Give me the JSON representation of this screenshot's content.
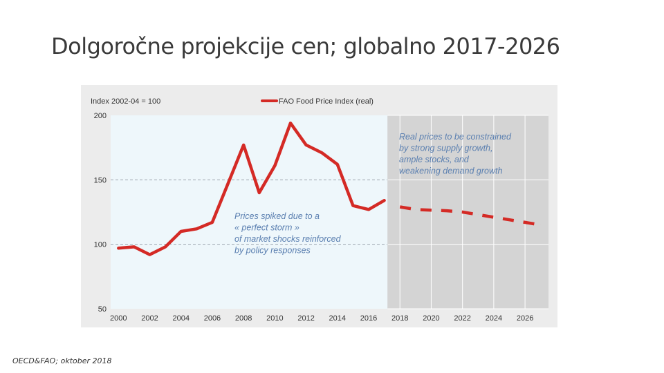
{
  "slide": {
    "title": "Dolgoročne projekcije cen; globalno 2017-2026",
    "source": "OECD&FAO; oktober 2018"
  },
  "colors": {
    "series": "#d42a25",
    "plot_bg": "#eef7fb",
    "projection_bg": "#d4d4d4",
    "frame_bg": "#ececec",
    "annotation_text": "#5a7fb0",
    "tick_text": "#333333"
  },
  "chart_data": {
    "type": "line",
    "ylabel": "Index 2002-04 = 100",
    "legend": {
      "label": "FAO Food Price Index (real)",
      "placement": "top-center"
    },
    "x_ticks": [
      "2000",
      "2002",
      "2004",
      "2006",
      "2008",
      "2010",
      "2012",
      "2014",
      "2016",
      "2018",
      "2020",
      "2022",
      "2024",
      "2026"
    ],
    "y_ticks": [
      "50",
      "100",
      "150",
      "200"
    ],
    "xlim": [
      1999.5,
      2027.5
    ],
    "ylim": [
      50,
      200
    ],
    "dashed_reference_lines": [
      100,
      150
    ],
    "projection_shading_from": 2017.2,
    "series": [
      {
        "name": "FAO Food Price Index (real)",
        "style": "solid",
        "x": [
          2000,
          2001,
          2002,
          2003,
          2004,
          2005,
          2006,
          2007,
          2008,
          2009,
          2010,
          2011,
          2012,
          2013,
          2014,
          2015,
          2016,
          2017
        ],
        "y": [
          97,
          98,
          92,
          98,
          110,
          112,
          117,
          147,
          177,
          140,
          161,
          194,
          177,
          171,
          162,
          130,
          127,
          134
        ]
      },
      {
        "name": "FAO Food Price Index (real)",
        "style": "dashed",
        "x": [
          2018,
          2019,
          2020,
          2021,
          2022,
          2023,
          2024,
          2025,
          2026,
          2027
        ],
        "y": [
          129,
          127,
          126.5,
          126,
          125,
          123,
          121,
          119,
          117,
          115
        ]
      }
    ],
    "annotations": [
      {
        "id": "projection",
        "lines": [
          "Real prices to be constrained",
          "by strong supply growth,",
          "ample stocks, and",
          "weakening demand growth"
        ]
      },
      {
        "id": "spike",
        "lines": [
          "Prices spiked due to a",
          "« perfect storm »",
          "of market shocks reinforced",
          "by policy responses"
        ]
      }
    ]
  }
}
